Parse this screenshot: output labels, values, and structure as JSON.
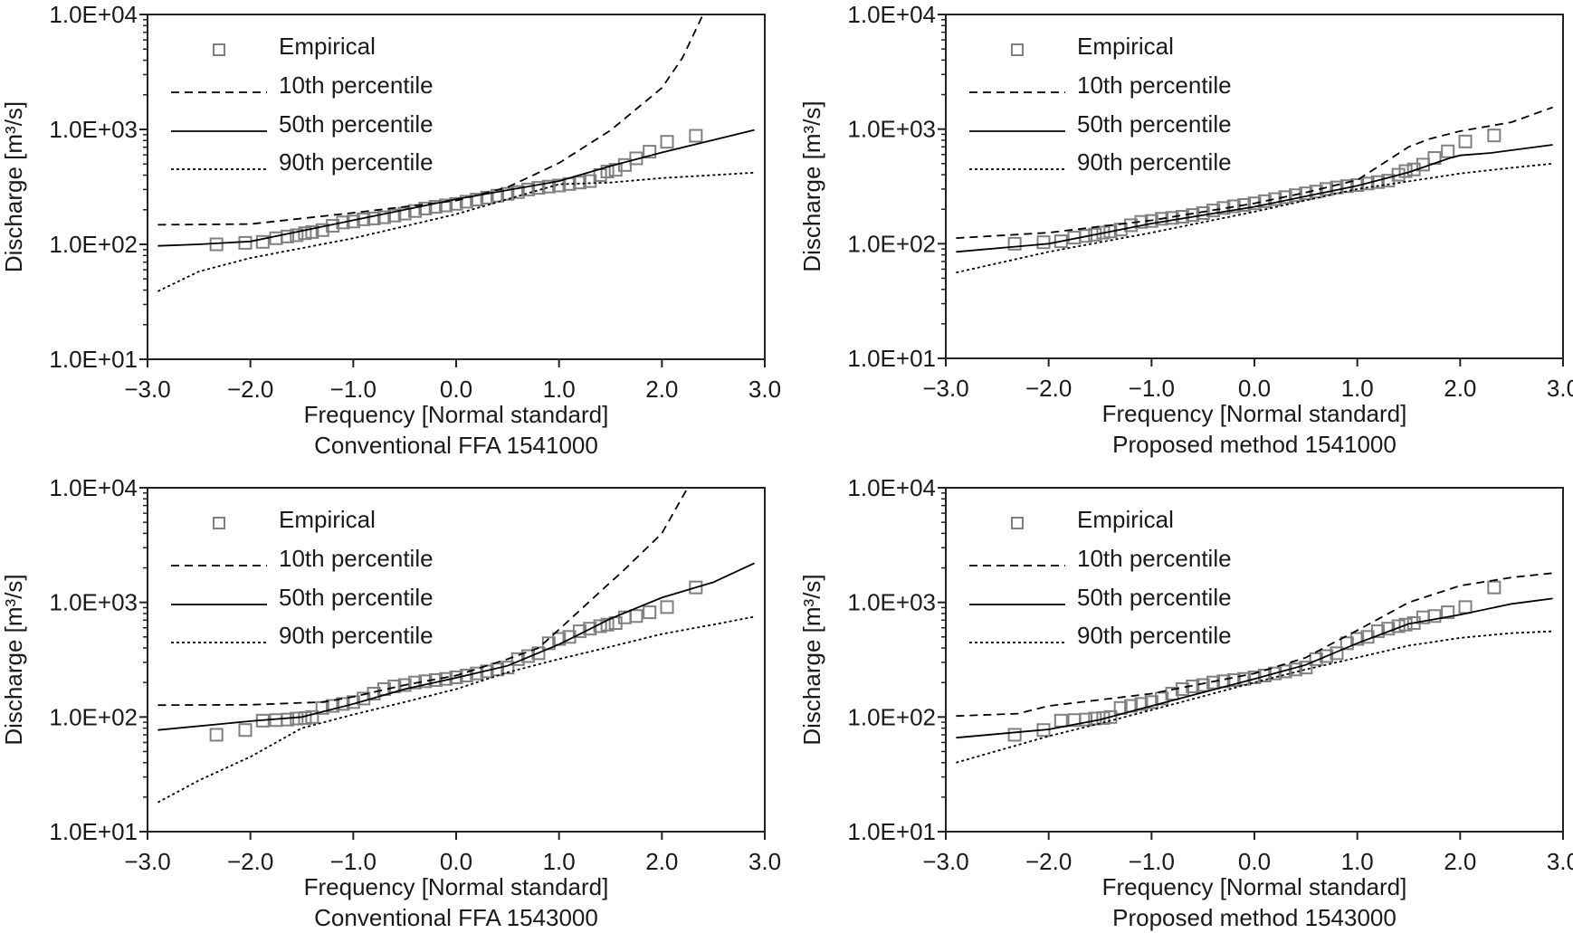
{
  "empirical_note": "",
  "chart_data": [
    {
      "type": "line",
      "title": "Conventional FFA 1541000",
      "xlabel": "Frequency [Normal standard]",
      "ylabel": "Discharge [m³/s]",
      "xlim": [
        -3,
        3
      ],
      "ylim": [
        10,
        10000
      ],
      "yscale": "log",
      "xticks": [
        "−3.0",
        "−2.0",
        "−1.0",
        "0.0",
        "1.0",
        "2.0",
        "3.0"
      ],
      "yticks": [
        "1.0E+01",
        "1.0E+02",
        "1.0E+03",
        "1.0E+04"
      ],
      "grid": false,
      "legend_placement": "top-left",
      "legend": [
        "Empirical",
        "10th percentile",
        "50th percentile",
        "90th percentile"
      ],
      "series": [
        {
          "name": "Empirical",
          "kind": "scatter",
          "color": "#808080",
          "x": [
            -2.33,
            -2.05,
            -1.88,
            -1.75,
            -1.64,
            -1.55,
            -1.47,
            -1.4,
            -1.3,
            -1.2,
            -1.1,
            -1.0,
            -0.9,
            -0.8,
            -0.7,
            -0.6,
            -0.5,
            -0.4,
            -0.3,
            -0.2,
            -0.1,
            0,
            0.1,
            0.2,
            0.3,
            0.4,
            0.5,
            0.6,
            0.7,
            0.8,
            0.9,
            1.0,
            1.1,
            1.2,
            1.3,
            1.4,
            1.47,
            1.55,
            1.64,
            1.75,
            1.88,
            2.05,
            2.33
          ],
          "y": [
            100,
            103,
            105,
            113,
            117,
            120,
            125,
            128,
            133,
            145,
            155,
            158,
            165,
            168,
            172,
            178,
            185,
            195,
            205,
            212,
            218,
            225,
            235,
            245,
            255,
            265,
            275,
            285,
            300,
            310,
            318,
            325,
            335,
            345,
            355,
            400,
            430,
            445,
            490,
            560,
            640,
            780,
            880
          ]
        },
        {
          "name": "10th percentile",
          "kind": "dashed",
          "color": "#000000",
          "x": [
            -2.9,
            -2,
            -1,
            0,
            0.5,
            1.0,
            1.5,
            2.0,
            2.2,
            2.4
          ],
          "y": [
            148,
            150,
            188,
            240,
            314,
            510,
            980,
            2300,
            4200,
            10000
          ]
        },
        {
          "name": "50th percentile",
          "kind": "solid",
          "color": "#000000",
          "x": [
            -2.9,
            -2.5,
            -2,
            -1,
            0,
            1.0,
            1.5,
            2.0,
            2.9
          ],
          "y": [
            97,
            100,
            106,
            162,
            247,
            355,
            480,
            630,
            990
          ]
        },
        {
          "name": "90th percentile",
          "kind": "dotted",
          "color": "#000000",
          "x": [
            -2.9,
            -2.5,
            -2,
            -1,
            0,
            0.5,
            1.0,
            1.5,
            2.0,
            2.9
          ],
          "y": [
            39,
            58,
            76,
            113,
            183,
            247,
            333,
            345,
            377,
            420
          ]
        }
      ]
    },
    {
      "type": "line",
      "title": "Proposed method 1541000",
      "xlabel": "Frequency [Normal standard]",
      "ylabel": "Discharge [m³/s]",
      "xlim": [
        -3,
        3
      ],
      "ylim": [
        10,
        10000
      ],
      "yscale": "log",
      "xticks": [
        "−3.0",
        "−2.0",
        "−1.0",
        "0.0",
        "1.0",
        "2.0",
        "3.0"
      ],
      "yticks": [
        "1.0E+01",
        "1.0E+02",
        "1.0E+03",
        "1.0E+04"
      ],
      "grid": false,
      "legend_placement": "top-left",
      "legend": [
        "Empirical",
        "10th percentile",
        "50th percentile",
        "90th percentile"
      ],
      "series": [
        {
          "name": "Empirical",
          "kind": "scatter",
          "color": "#808080",
          "x": [
            -2.33,
            -2.05,
            -1.88,
            -1.75,
            -1.64,
            -1.55,
            -1.47,
            -1.4,
            -1.3,
            -1.2,
            -1.1,
            -1.0,
            -0.9,
            -0.8,
            -0.7,
            -0.6,
            -0.5,
            -0.4,
            -0.3,
            -0.2,
            -0.1,
            0,
            0.1,
            0.2,
            0.3,
            0.4,
            0.5,
            0.6,
            0.7,
            0.8,
            0.9,
            1.0,
            1.1,
            1.2,
            1.3,
            1.4,
            1.47,
            1.55,
            1.64,
            1.75,
            1.88,
            2.05,
            2.33
          ],
          "y": [
            100,
            103,
            105,
            113,
            117,
            120,
            125,
            128,
            133,
            145,
            155,
            158,
            165,
            168,
            172,
            178,
            185,
            195,
            205,
            212,
            218,
            225,
            235,
            245,
            255,
            265,
            275,
            285,
            300,
            310,
            318,
            325,
            335,
            345,
            355,
            400,
            430,
            445,
            490,
            560,
            640,
            780,
            880
          ]
        },
        {
          "name": "10th percentile",
          "kind": "dashed",
          "color": "#000000",
          "x": [
            -2.9,
            -2,
            -1,
            0,
            0.5,
            1.0,
            1.5,
            1.7,
            2.0,
            2.5,
            2.9
          ],
          "y": [
            112,
            125,
            160,
            225,
            280,
            360,
            700,
            820,
            960,
            1150,
            1550
          ]
        },
        {
          "name": "50th percentile",
          "kind": "solid",
          "color": "#000000",
          "x": [
            -2.9,
            -2,
            -1,
            0,
            1.0,
            1.5,
            1.9,
            2.0,
            2.3,
            2.9
          ],
          "y": [
            85,
            100,
            150,
            210,
            320,
            420,
            560,
            590,
            620,
            730
          ]
        },
        {
          "name": "90th percentile",
          "kind": "dotted",
          "color": "#000000",
          "x": [
            -2.9,
            -2,
            -1,
            0,
            1.0,
            1.5,
            2.0,
            2.5,
            2.9
          ],
          "y": [
            56,
            85,
            125,
            190,
            300,
            350,
            410,
            460,
            500
          ]
        }
      ]
    },
    {
      "type": "line",
      "title": "Conventional FFA 1543000",
      "xlabel": "Frequency [Normal standard]",
      "ylabel": "Discharge [m³/s]",
      "xlim": [
        -3,
        3
      ],
      "ylim": [
        10,
        10000
      ],
      "yscale": "log",
      "xticks": [
        "−3.0",
        "−2.0",
        "−1.0",
        "0.0",
        "1.0",
        "2.0",
        "3.0"
      ],
      "yticks": [
        "1.0E+01",
        "1.0E+02",
        "1.0E+03",
        "1.0E+04"
      ],
      "grid": false,
      "legend_placement": "top-left",
      "legend": [
        "Empirical",
        "10th percentile",
        "50th percentile",
        "90th percentile"
      ],
      "series": [
        {
          "name": "Empirical",
          "kind": "scatter",
          "color": "#808080",
          "x": [
            -2.33,
            -2.05,
            -1.88,
            -1.75,
            -1.64,
            -1.55,
            -1.47,
            -1.4,
            -1.3,
            -1.2,
            -1.1,
            -1.0,
            -0.9,
            -0.8,
            -0.7,
            -0.6,
            -0.5,
            -0.4,
            -0.3,
            -0.2,
            -0.1,
            0,
            0.1,
            0.2,
            0.3,
            0.4,
            0.5,
            0.6,
            0.7,
            0.8,
            0.9,
            1.0,
            1.1,
            1.2,
            1.3,
            1.4,
            1.47,
            1.55,
            1.64,
            1.75,
            1.88,
            2.05,
            2.33
          ],
          "y": [
            70,
            77,
            93,
            94,
            95,
            97,
            98,
            100,
            120,
            125,
            130,
            135,
            145,
            160,
            175,
            185,
            190,
            200,
            205,
            210,
            215,
            222,
            230,
            240,
            250,
            260,
            270,
            320,
            340,
            360,
            440,
            480,
            500,
            560,
            590,
            620,
            640,
            660,
            740,
            760,
            820,
            910,
            1350
          ]
        },
        {
          "name": "10th percentile",
          "kind": "dashed",
          "color": "#000000",
          "x": [
            -2.9,
            -2,
            -1.3,
            -1,
            -0.5,
            0,
            0.5,
            0.8,
            1.0,
            1.5,
            1.6,
            2.0,
            2.25
          ],
          "y": [
            127,
            128,
            135,
            150,
            190,
            230,
            320,
            400,
            580,
            1500,
            1800,
            4000,
            10000
          ]
        },
        {
          "name": "50th percentile",
          "kind": "solid",
          "color": "#000000",
          "x": [
            -2.9,
            -2,
            -1.5,
            -1,
            -0.5,
            0,
            0.5,
            1.0,
            1.5,
            2.0,
            2.5,
            2.9
          ],
          "y": [
            77,
            92,
            100,
            130,
            175,
            220,
            280,
            430,
            720,
            1100,
            1500,
            2200
          ]
        },
        {
          "name": "90th percentile",
          "kind": "dotted",
          "color": "#000000",
          "x": [
            -2.9,
            -2.5,
            -2,
            -1.5,
            -1,
            -0.5,
            0,
            0.5,
            1.0,
            1.5,
            2.0,
            2.5,
            2.9
          ],
          "y": [
            18,
            28,
            45,
            80,
            105,
            135,
            175,
            245,
            320,
            410,
            530,
            640,
            750
          ]
        }
      ]
    },
    {
      "type": "line",
      "title": "Proposed method 1543000",
      "xlabel": "Frequency [Normal standard]",
      "ylabel": "Discharge [m³/s]",
      "xlim": [
        -3,
        3
      ],
      "ylim": [
        10,
        10000
      ],
      "yscale": "log",
      "xticks": [
        "−3.0",
        "−2.0",
        "−1.0",
        "0.0",
        "1.0",
        "2.0",
        "3.0"
      ],
      "yticks": [
        "1.0E+01",
        "1.0E+02",
        "1.0E+03",
        "1.0E+04"
      ],
      "grid": false,
      "legend_placement": "top-left",
      "legend": [
        "Empirical",
        "10th percentile",
        "50th percentile",
        "90th percentile"
      ],
      "series": [
        {
          "name": "Empirical",
          "kind": "scatter",
          "color": "#808080",
          "x": [
            -2.33,
            -2.05,
            -1.88,
            -1.75,
            -1.64,
            -1.55,
            -1.47,
            -1.4,
            -1.3,
            -1.2,
            -1.1,
            -1.0,
            -0.9,
            -0.8,
            -0.7,
            -0.6,
            -0.5,
            -0.4,
            -0.3,
            -0.2,
            -0.1,
            0,
            0.1,
            0.2,
            0.3,
            0.4,
            0.5,
            0.6,
            0.7,
            0.8,
            0.9,
            1.0,
            1.1,
            1.2,
            1.3,
            1.4,
            1.47,
            1.55,
            1.64,
            1.75,
            1.88,
            2.05,
            2.33
          ],
          "y": [
            70,
            77,
            93,
            94,
            95,
            97,
            98,
            100,
            120,
            125,
            130,
            135,
            145,
            160,
            175,
            185,
            190,
            200,
            205,
            210,
            215,
            222,
            230,
            240,
            250,
            260,
            270,
            320,
            340,
            360,
            440,
            480,
            500,
            560,
            590,
            620,
            640,
            660,
            740,
            760,
            820,
            910,
            1350
          ]
        },
        {
          "name": "10th percentile",
          "kind": "dashed",
          "color": "#000000",
          "x": [
            -2.9,
            -2.3,
            -2,
            -1,
            0,
            0.5,
            0.8,
            1.0,
            1.5,
            2.0,
            2.5,
            2.9
          ],
          "y": [
            102,
            107,
            125,
            160,
            240,
            330,
            460,
            570,
            1000,
            1400,
            1650,
            1800
          ]
        },
        {
          "name": "50th percentile",
          "kind": "solid",
          "color": "#000000",
          "x": [
            -2.9,
            -2,
            -1.5,
            -1,
            0,
            0.5,
            1.0,
            1.5,
            2.0,
            2.5,
            2.9
          ],
          "y": [
            66,
            78,
            95,
            125,
            215,
            285,
            440,
            650,
            780,
            970,
            1080
          ]
        },
        {
          "name": "90th percentile",
          "kind": "dotted",
          "color": "#000000",
          "x": [
            -2.9,
            -2,
            -1.5,
            -1,
            0,
            0.5,
            1.0,
            1.5,
            2.0,
            2.5,
            2.9
          ],
          "y": [
            40,
            68,
            88,
            115,
            200,
            260,
            330,
            420,
            490,
            540,
            560
          ]
        }
      ]
    }
  ]
}
